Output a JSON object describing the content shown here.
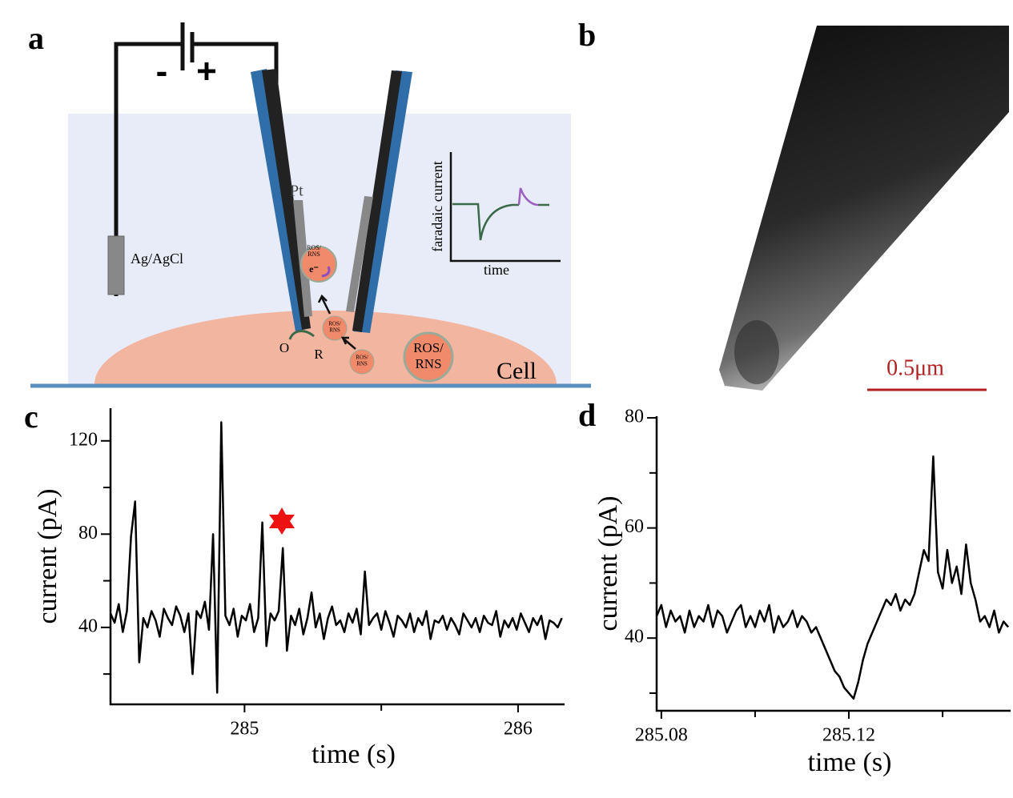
{
  "panel_labels": [
    "a",
    "b",
    "c",
    "d"
  ],
  "diagram": {
    "battery_minus": "-",
    "battery_plus": "+",
    "reference_electrode": "Ag/AgCl",
    "electrode": "Pt",
    "species": [
      [
        "ROS/",
        "RNS"
      ],
      [
        "ROS/",
        "RNS"
      ],
      [
        "ROS/",
        "RNS"
      ],
      [
        "ROS/",
        "RNS"
      ]
    ],
    "electron": "e⁻",
    "oxidized": "O",
    "reduced": "R",
    "cell": "Cell",
    "inset_y_label": "faradaic current",
    "inset_x_label": "time"
  },
  "micrograph": {
    "scale_bar": "0.5μm"
  },
  "chart_data": [
    {
      "type": "line",
      "x_label": "time (s)",
      "y_label": "current (pA)",
      "color": "#000000",
      "xlim": [
        284.51,
        286.17
      ],
      "ylim": [
        7,
        134
      ],
      "xticks": [
        285,
        286
      ],
      "yticks": [
        40,
        80,
        120
      ],
      "xminor_ticks": [
        285.5
      ],
      "yminor_ticks": [
        20,
        60,
        100
      ],
      "x": [
        284.51,
        284.525,
        284.54,
        284.555,
        284.57,
        284.585,
        284.6,
        284.615,
        284.63,
        284.645,
        284.66,
        284.675,
        284.69,
        284.705,
        284.72,
        284.735,
        284.75,
        284.765,
        284.78,
        284.795,
        284.81,
        284.825,
        284.84,
        284.855,
        284.87,
        284.885,
        284.9,
        284.915,
        284.93,
        284.945,
        284.96,
        284.975,
        284.99,
        285.005,
        285.02,
        285.035,
        285.05,
        285.065,
        285.08,
        285.095,
        285.11,
        285.125,
        285.14,
        285.155,
        285.17,
        285.185,
        285.2,
        285.215,
        285.23,
        285.245,
        285.26,
        285.275,
        285.29,
        285.305,
        285.32,
        285.335,
        285.35,
        285.365,
        285.38,
        285.395,
        285.41,
        285.425,
        285.44,
        285.455,
        285.47,
        285.485,
        285.5,
        285.515,
        285.53,
        285.545,
        285.56,
        285.575,
        285.59,
        285.605,
        285.62,
        285.635,
        285.65,
        285.665,
        285.68,
        285.695,
        285.71,
        285.725,
        285.74,
        285.755,
        285.77,
        285.785,
        285.8,
        285.815,
        285.83,
        285.845,
        285.86,
        285.875,
        285.89,
        285.905,
        285.92,
        285.935,
        285.95,
        285.965,
        285.98,
        285.995,
        286.01,
        286.025,
        286.04,
        286.055,
        286.07,
        286.085,
        286.1,
        286.115,
        286.13,
        286.145,
        286.16
      ],
      "values": [
        46,
        42,
        50,
        38,
        47,
        79,
        94,
        25,
        44,
        40,
        47,
        43,
        36,
        48,
        44,
        41,
        49,
        45,
        38,
        46,
        20,
        47,
        44,
        51,
        39,
        80,
        12,
        128,
        45,
        41,
        48,
        36,
        45,
        43,
        50,
        38,
        44,
        85,
        32,
        46,
        43,
        47,
        74,
        30,
        45,
        41,
        48,
        37,
        44,
        55,
        40,
        46,
        35,
        44,
        49,
        41,
        43,
        38,
        46,
        42,
        48,
        37,
        64,
        41,
        44,
        46,
        39,
        47,
        42,
        36,
        45,
        43,
        40,
        46,
        38,
        44,
        41,
        47,
        35,
        43,
        42,
        45,
        39,
        44,
        41,
        37,
        46,
        43,
        40,
        44,
        38,
        45,
        42,
        41,
        47,
        36,
        43,
        40,
        44,
        39,
        46,
        42,
        38,
        44,
        41,
        45,
        35,
        43,
        42,
        40,
        44
      ]
    },
    {
      "type": "line",
      "x_label": "time (s)",
      "y_label": "current (pA)",
      "color": "#000000",
      "xlim": [
        285.079,
        285.1545
      ],
      "ylim": [
        26.8,
        80.3
      ],
      "xticks": [
        285.08,
        285.12
      ],
      "yticks": [
        40,
        60,
        80
      ],
      "xminor_ticks": [
        285.1,
        285.14
      ],
      "yminor_ticks": [
        30,
        50,
        70
      ],
      "x": [
        285.079,
        285.08,
        285.081,
        285.082,
        285.083,
        285.084,
        285.085,
        285.086,
        285.087,
        285.088,
        285.089,
        285.09,
        285.091,
        285.092,
        285.093,
        285.094,
        285.095,
        285.096,
        285.097,
        285.098,
        285.099,
        285.1,
        285.101,
        285.102,
        285.103,
        285.104,
        285.105,
        285.106,
        285.107,
        285.108,
        285.109,
        285.11,
        285.111,
        285.112,
        285.113,
        285.114,
        285.115,
        285.116,
        285.117,
        285.118,
        285.119,
        285.12,
        285.121,
        285.122,
        285.123,
        285.124,
        285.125,
        285.126,
        285.127,
        285.128,
        285.129,
        285.13,
        285.131,
        285.132,
        285.133,
        285.134,
        285.135,
        285.136,
        285.137,
        285.138,
        285.139,
        285.14,
        285.141,
        285.142,
        285.143,
        285.144,
        285.145,
        285.146,
        285.147,
        285.148,
        285.149,
        285.15,
        285.151,
        285.152,
        285.153,
        285.154
      ],
      "values": [
        44,
        46,
        42,
        45,
        43,
        44,
        41,
        45,
        42,
        44,
        43,
        46,
        42,
        45,
        44,
        41,
        43,
        45,
        46,
        42,
        44,
        42,
        45,
        43,
        46,
        41,
        44,
        42,
        43,
        45,
        42,
        44,
        43,
        41,
        42,
        40,
        38,
        36,
        34,
        33,
        31,
        30,
        29,
        32,
        36,
        39,
        41,
        43,
        45,
        47,
        46,
        48,
        45,
        47,
        46,
        48,
        52,
        56,
        54,
        73,
        52,
        49,
        56,
        50,
        53,
        48,
        57,
        50,
        47,
        43,
        44,
        42,
        45,
        41,
        43,
        42
      ]
    }
  ]
}
